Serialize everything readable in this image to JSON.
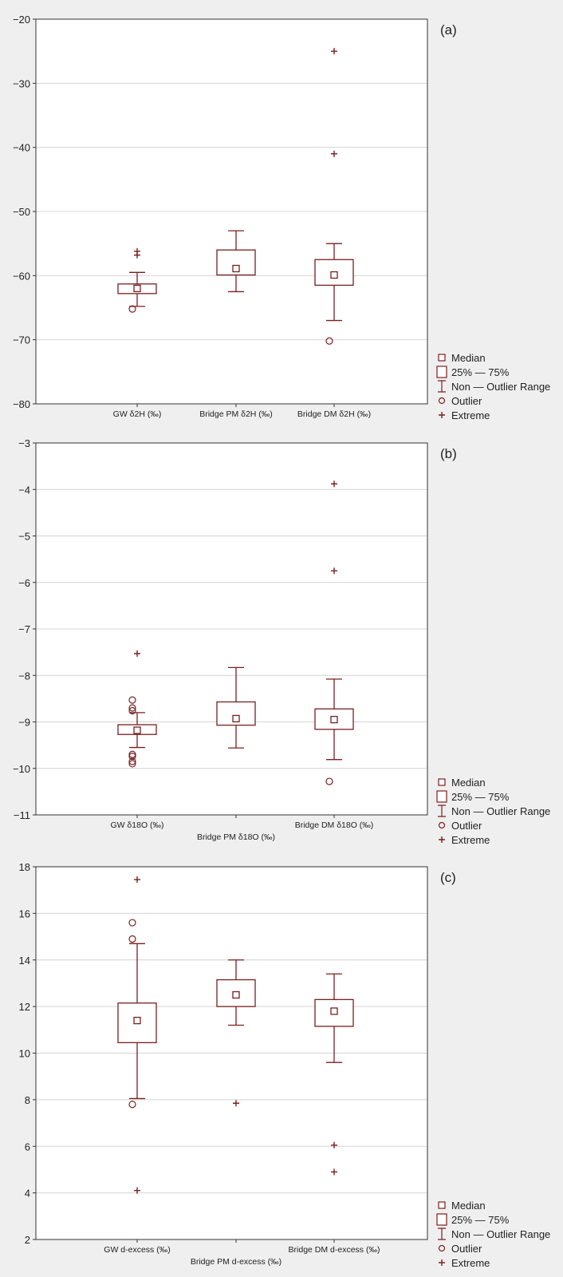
{
  "colors": {
    "mark": "#7a1f1f",
    "plot_bg": "#ffffff",
    "page_bg": "#efefef",
    "grid": "#d4d4d4"
  },
  "legend": {
    "entries": [
      {
        "symbol": "median-square-icon",
        "label": "Median"
      },
      {
        "symbol": "box-icon",
        "label": "25% — 75%"
      },
      {
        "symbol": "whisker-icon",
        "label": "Non — Outlier Range"
      },
      {
        "symbol": "outlier-circle-icon",
        "label": "Outlier"
      },
      {
        "symbol": "extreme-plus-icon",
        "label": "Extreme"
      }
    ],
    "placement": "bottom-right"
  },
  "chart_data": [
    {
      "type": "box",
      "panel_label": "(a)",
      "ylim": [
        -80,
        -20
      ],
      "yticks": [
        -20,
        -30,
        -40,
        -50,
        -60,
        -70,
        -80
      ],
      "grid": true,
      "categories": [
        "GW δ2H (‰)",
        "Bridge PM δ2H (‰)",
        "Bridge DM δ2H (‰)"
      ],
      "boxes": [
        {
          "median": -62.0,
          "q1": -62.8,
          "q3": -61.3,
          "whisker_low": -64.8,
          "whisker_high": -59.5,
          "outliers": [
            -65.2
          ],
          "extremes": [
            -56.2,
            -56.8
          ]
        },
        {
          "median": -58.9,
          "q1": -59.9,
          "q3": -56.0,
          "whisker_low": -62.5,
          "whisker_high": -53.0,
          "outliers": [],
          "extremes": []
        },
        {
          "median": -59.9,
          "q1": -61.5,
          "q3": -57.5,
          "whisker_low": -67.0,
          "whisker_high": -55.0,
          "outliers": [
            -70.2
          ],
          "extremes": [
            -25.0,
            -41.0
          ]
        }
      ]
    },
    {
      "type": "box",
      "panel_label": "(b)",
      "ylim": [
        -11,
        -3
      ],
      "yticks": [
        -3,
        -4,
        -5,
        -6,
        -7,
        -8,
        -9,
        -10,
        -11
      ],
      "grid": true,
      "categories": [
        "GW δ18O (‰)",
        "Bridge PM δ18O (‰)",
        "Bridge DM δ18O (‰)"
      ],
      "boxes": [
        {
          "median": -9.18,
          "q1": -9.27,
          "q3": -9.06,
          "whisker_low": -9.55,
          "whisker_high": -8.8,
          "outliers": [
            -8.53,
            -8.7,
            -8.76,
            -9.7,
            -9.74,
            -9.85,
            -9.9
          ],
          "extremes": [
            -7.53
          ]
        },
        {
          "median": -8.93,
          "q1": -9.07,
          "q3": -8.57,
          "whisker_low": -9.56,
          "whisker_high": -7.83,
          "outliers": [],
          "extremes": []
        },
        {
          "median": -8.95,
          "q1": -9.16,
          "q3": -8.72,
          "whisker_low": -9.81,
          "whisker_high": -8.08,
          "outliers": [
            -10.28
          ],
          "extremes": [
            -3.88,
            -5.75
          ]
        }
      ]
    },
    {
      "type": "box",
      "panel_label": "(c)",
      "ylim": [
        2,
        18
      ],
      "yticks": [
        18,
        16,
        14,
        12,
        10,
        8,
        6,
        4,
        2
      ],
      "grid": true,
      "categories": [
        "GW d-excess (‰)",
        "Bridge PM d-excess (‰)",
        "Bridge DM d-excess (‰)"
      ],
      "boxes": [
        {
          "median": 11.4,
          "q1": 10.45,
          "q3": 12.15,
          "whisker_low": 8.05,
          "whisker_high": 14.7,
          "outliers": [
            15.6,
            14.9,
            7.8
          ],
          "extremes": [
            17.45,
            4.1
          ]
        },
        {
          "median": 12.5,
          "q1": 12.0,
          "q3": 13.15,
          "whisker_low": 11.2,
          "whisker_high": 14.0,
          "outliers": [],
          "extremes": [
            7.85
          ]
        },
        {
          "median": 11.8,
          "q1": 11.15,
          "q3": 12.3,
          "whisker_low": 9.6,
          "whisker_high": 13.4,
          "outliers": [],
          "extremes": [
            6.05,
            4.9
          ]
        }
      ]
    }
  ]
}
